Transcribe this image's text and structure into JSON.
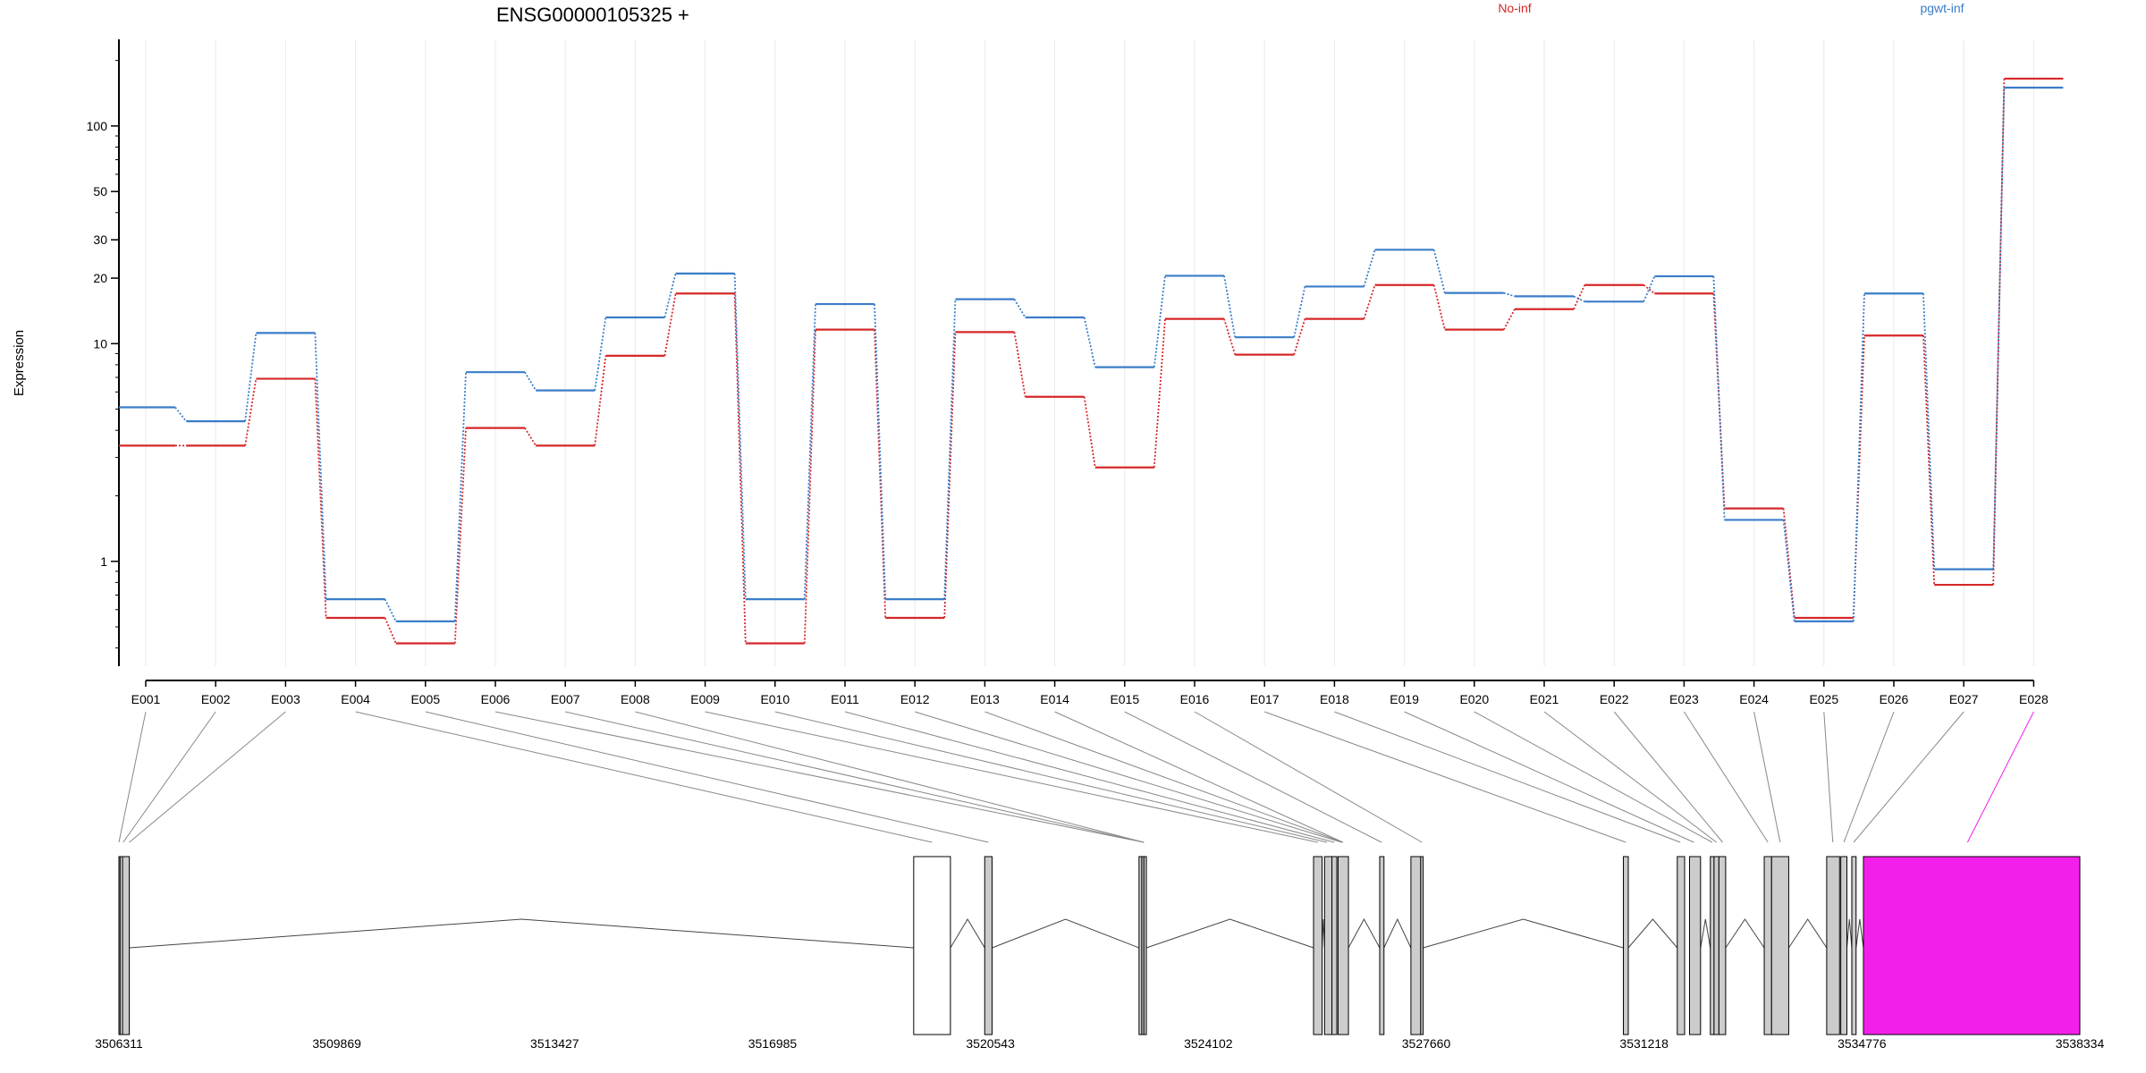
{
  "chart_data": {
    "type": "line",
    "title": "ENSG00000105325 +",
    "ylabel": "Expression",
    "yscale": "log",
    "ylim": [
      0.33,
      250
    ],
    "yticks": [
      1,
      10,
      20,
      30,
      50,
      100
    ],
    "grid": true,
    "legend_position": "top-right",
    "categories": [
      "E001",
      "E002",
      "E003",
      "E004",
      "E005",
      "E006",
      "E007",
      "E008",
      "E009",
      "E010",
      "E011",
      "E012",
      "E013",
      "E014",
      "E015",
      "E016",
      "E017",
      "E018",
      "E019",
      "E020",
      "E021",
      "E022",
      "E023",
      "E024",
      "E025",
      "E026",
      "E027",
      "E028"
    ],
    "series": [
      {
        "name": "No-inf",
        "color": "#d62728",
        "values": [
          3.4,
          3.4,
          6.9,
          0.55,
          0.42,
          4.1,
          3.4,
          8.8,
          17.0,
          0.42,
          11.6,
          0.55,
          11.3,
          5.7,
          2.7,
          13.0,
          8.9,
          13.0,
          18.6,
          11.6,
          14.4,
          18.6,
          17.0,
          1.75,
          0.55,
          10.9,
          0.78,
          165
        ]
      },
      {
        "name": "pgwt-inf",
        "color": "#3a7dc9",
        "values": [
          5.1,
          4.4,
          11.2,
          0.67,
          0.53,
          7.4,
          6.1,
          13.2,
          21.0,
          0.67,
          15.2,
          0.67,
          16.0,
          13.2,
          7.8,
          20.5,
          10.7,
          18.3,
          27.0,
          17.1,
          16.5,
          15.6,
          20.4,
          1.55,
          0.53,
          17.0,
          0.92,
          150
        ]
      }
    ],
    "gene_model": {
      "xaxis_ticks": [
        "3506311",
        "3509869",
        "3513427",
        "3516985",
        "3520543",
        "3524102",
        "3527660",
        "3531218",
        "3534776",
        "3538334"
      ],
      "xlim": [
        3506311,
        3538334
      ],
      "highlight_exon": "E028",
      "highlight_color": "#f41eea",
      "exon_fill": "#cccccc",
      "exons": [
        {
          "start": 3506311,
          "end": 3506330
        },
        {
          "start": 3506330,
          "end": 3506480
        },
        {
          "start": 3506370,
          "end": 3506480
        },
        {
          "start": 3519290,
          "end": 3519890
        },
        {
          "start": 3520450,
          "end": 3520570
        },
        {
          "start": 3522970,
          "end": 3523015
        },
        {
          "start": 3523015,
          "end": 3523050
        },
        {
          "start": 3523050,
          "end": 3523090
        },
        {
          "start": 3525820,
          "end": 3525960
        },
        {
          "start": 3526000,
          "end": 3526120
        },
        {
          "start": 3526120,
          "end": 3526200
        },
        {
          "start": 3526220,
          "end": 3526390
        },
        {
          "start": 3526900,
          "end": 3526970
        },
        {
          "start": 3527410,
          "end": 3527570
        },
        {
          "start": 3527570,
          "end": 3527610
        },
        {
          "start": 3530880,
          "end": 3530960
        },
        {
          "start": 3531760,
          "end": 3531880
        },
        {
          "start": 3531960,
          "end": 3532140
        },
        {
          "start": 3532300,
          "end": 3532360
        },
        {
          "start": 3532360,
          "end": 3532440
        },
        {
          "start": 3532440,
          "end": 3532550
        },
        {
          "start": 3533180,
          "end": 3533300
        },
        {
          "start": 3533300,
          "end": 3533580
        },
        {
          "start": 3534200,
          "end": 3534410
        },
        {
          "start": 3534430,
          "end": 3534530
        },
        {
          "start": 3534610,
          "end": 3534680
        },
        {
          "start": 3534800,
          "end": 3538334,
          "highlight": true
        }
      ],
      "introns": [
        [
          3506480,
          3519290
        ],
        [
          3519890,
          3520450
        ],
        [
          3520570,
          3522970
        ],
        [
          3523090,
          3525820
        ],
        [
          3525960,
          3526000
        ],
        [
          3526390,
          3526900
        ],
        [
          3526970,
          3527410
        ],
        [
          3527610,
          3530880
        ],
        [
          3530960,
          3531760
        ],
        [
          3532140,
          3532300
        ],
        [
          3532550,
          3533180
        ],
        [
          3533580,
          3534200
        ],
        [
          3534530,
          3534610
        ],
        [
          3534680,
          3534800
        ]
      ],
      "link_targets": [
        3506311,
        3506380,
        3506480,
        3519590,
        3520510,
        3523050,
        3523050,
        3523050,
        3525890,
        3526040,
        3526160,
        3526280,
        3526300,
        3526300,
        3526930,
        3527590,
        3530920,
        3531810,
        3532030,
        3532330,
        3532400,
        3532500,
        3533240,
        3533440,
        3534300,
        3534480,
        3534640,
        3536500
      ]
    }
  }
}
